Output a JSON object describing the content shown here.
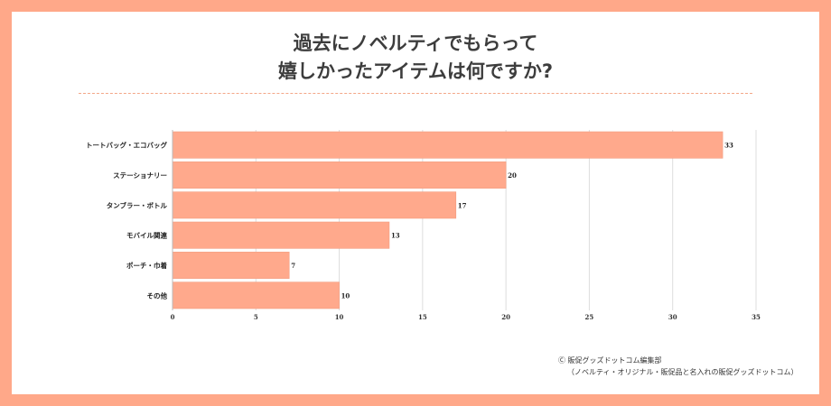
{
  "title": {
    "line1": "過去にノベルティでもらって",
    "line2": "嬉しかったアイテムは何ですか?"
  },
  "colors": {
    "frame": "#ffa889",
    "bar": "#ffa98c",
    "bar_stroke": "#f29d80",
    "grid": "#dddddd",
    "text": "#3d3d3d"
  },
  "chart_data": {
    "type": "bar",
    "orientation": "horizontal",
    "categories": [
      "トートバッグ・エコバッグ",
      "ステーショナリー",
      "タンブラー・ボトル",
      "モバイル関連",
      "ポーチ・巾着",
      "その他"
    ],
    "values": [
      33,
      20,
      17,
      13,
      7,
      10
    ],
    "xlim": [
      0,
      35
    ],
    "xticks": [
      0,
      5,
      10,
      15,
      20,
      25,
      30,
      35
    ],
    "grid": true,
    "data_labels": true
  },
  "credit": {
    "line1": "Ⓒ 販促グッズドットコム編集部",
    "line2": "（ノベルティ・オリジナル・販促品と名入れの販促グッズドットコム）"
  }
}
